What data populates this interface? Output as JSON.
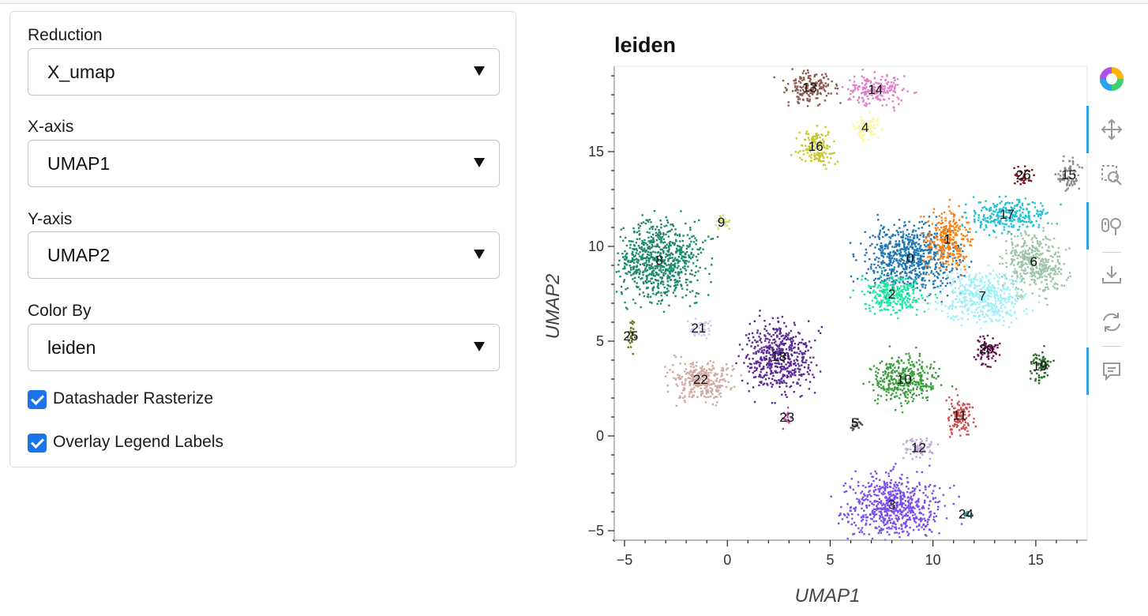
{
  "controls": {
    "reduction": {
      "label": "Reduction",
      "value": "X_umap"
    },
    "x_axis": {
      "label": "X-axis",
      "value": "UMAP1"
    },
    "y_axis": {
      "label": "Y-axis",
      "value": "UMAP2"
    },
    "color_by": {
      "label": "Color By",
      "value": "leiden"
    },
    "rasterize": {
      "label": "Datashader Rasterize",
      "checked": true
    },
    "overlay": {
      "label": "Overlay Legend Labels",
      "checked": true
    }
  },
  "toolbar": {
    "icons": [
      "bokeh-logo-icon",
      "pan-icon",
      "box-zoom-icon",
      "wheel-zoom-icon",
      "save-icon",
      "reset-icon",
      "hover-icon"
    ],
    "accent_color": "#2ea0e0"
  },
  "chart_data": {
    "type": "scatter",
    "title": "leiden",
    "xlabel": "UMAP1",
    "ylabel": "UMAP2",
    "xlim": [
      -5.5,
      17.5
    ],
    "ylim": [
      -5.5,
      19.5
    ],
    "xticks": [
      -5,
      0,
      5,
      10,
      15
    ],
    "yticks": [
      -5,
      0,
      5,
      10,
      15
    ],
    "clusters": [
      {
        "label": "0",
        "x": 8.9,
        "y": 9.4,
        "rx": 2.5,
        "ry": 2.0,
        "color": "#1f77b4"
      },
      {
        "label": "1",
        "x": 10.7,
        "y": 10.4,
        "rx": 1.2,
        "ry": 1.6,
        "color": "#ff7f0e"
      },
      {
        "label": "2",
        "x": 8.0,
        "y": 7.5,
        "rx": 1.7,
        "ry": 1.1,
        "color": "#1ee8a0"
      },
      {
        "label": "3",
        "x": 8.0,
        "y": -3.6,
        "rx": 2.5,
        "ry": 1.8,
        "color": "#7b4cf0"
      },
      {
        "label": "4",
        "x": 6.7,
        "y": 16.3,
        "rx": 0.7,
        "ry": 0.8,
        "color": "#fff59a"
      },
      {
        "label": "5",
        "x": 6.2,
        "y": 0.7,
        "rx": 0.3,
        "ry": 0.3,
        "color": "#555555"
      },
      {
        "label": "6",
        "x": 14.9,
        "y": 9.2,
        "rx": 1.6,
        "ry": 1.8,
        "color": "#9fc4a8"
      },
      {
        "label": "7",
        "x": 12.4,
        "y": 7.4,
        "rx": 2.2,
        "ry": 1.5,
        "color": "#9ef0f8"
      },
      {
        "label": "8",
        "x": -3.3,
        "y": 9.3,
        "rx": 2.3,
        "ry": 2.3,
        "color": "#1b8a6b"
      },
      {
        "label": "9",
        "x": -0.3,
        "y": 11.3,
        "rx": 0.4,
        "ry": 0.4,
        "color": "#c8e060"
      },
      {
        "label": "10",
        "x": 8.6,
        "y": 3.0,
        "rx": 1.8,
        "ry": 1.4,
        "color": "#3c9e3c"
      },
      {
        "label": "11",
        "x": 11.3,
        "y": 1.1,
        "rx": 0.7,
        "ry": 1.2,
        "color": "#d05050"
      },
      {
        "label": "12",
        "x": 9.3,
        "y": -0.6,
        "rx": 0.9,
        "ry": 0.6,
        "color": "#c0a8d8"
      },
      {
        "label": "13",
        "x": 4.0,
        "y": 18.4,
        "rx": 1.3,
        "ry": 0.9,
        "color": "#8b5a4c"
      },
      {
        "label": "14",
        "x": 7.2,
        "y": 18.3,
        "rx": 1.6,
        "ry": 0.9,
        "color": "#e080c8"
      },
      {
        "label": "15",
        "x": 16.6,
        "y": 13.8,
        "rx": 0.6,
        "ry": 0.9,
        "color": "#8a8a8a"
      },
      {
        "label": "16",
        "x": 4.3,
        "y": 15.3,
        "rx": 1.0,
        "ry": 1.1,
        "color": "#c8c830"
      },
      {
        "label": "17",
        "x": 13.6,
        "y": 11.7,
        "rx": 2.1,
        "ry": 0.9,
        "color": "#20c0d0"
      },
      {
        "label": "18",
        "x": 2.5,
        "y": 4.2,
        "rx": 1.8,
        "ry": 2.0,
        "color": "#5a2a98"
      },
      {
        "label": "19",
        "x": 15.2,
        "y": 3.7,
        "rx": 0.6,
        "ry": 0.9,
        "color": "#2a6a2a"
      },
      {
        "label": "20",
        "x": 12.6,
        "y": 4.6,
        "rx": 0.6,
        "ry": 0.9,
        "color": "#6a1050"
      },
      {
        "label": "21",
        "x": -1.4,
        "y": 5.7,
        "rx": 0.6,
        "ry": 0.5,
        "color": "#c8c8f0"
      },
      {
        "label": "22",
        "x": -1.3,
        "y": 3.0,
        "rx": 1.7,
        "ry": 1.2,
        "color": "#d0aaa0"
      },
      {
        "label": "23",
        "x": 2.9,
        "y": 1.0,
        "rx": 0.3,
        "ry": 0.5,
        "color": "#c050a0"
      },
      {
        "label": "24",
        "x": 11.6,
        "y": -4.1,
        "rx": 0.3,
        "ry": 0.2,
        "color": "#2a8a8a"
      },
      {
        "label": "25",
        "x": -4.7,
        "y": 5.3,
        "rx": 0.2,
        "ry": 1.0,
        "color": "#707020"
      },
      {
        "label": "26",
        "x": 14.4,
        "y": 13.8,
        "rx": 0.5,
        "ry": 0.5,
        "color": "#7a1020"
      }
    ]
  }
}
